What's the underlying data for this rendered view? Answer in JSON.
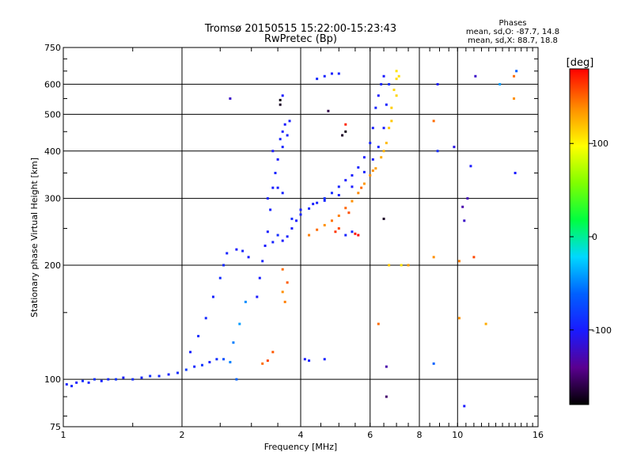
{
  "chart_data": {
    "type": "scatter",
    "title": "Tromsø 20150515 15:22:00-15:23:43",
    "subtitle": "RwPretec (Bp)",
    "xlabel": "Frequency [MHz]",
    "ylabel": "Stationary phase Virtual Height [km]",
    "x_scale": "log",
    "y_scale": "log",
    "xlim": [
      1,
      16
    ],
    "ylim": [
      75,
      750
    ],
    "x_ticks": [
      1,
      2,
      4,
      6,
      8,
      10,
      16
    ],
    "y_ticks": [
      75,
      100,
      200,
      300,
      400,
      500,
      600,
      750
    ],
    "grid": true,
    "phase_header": "Phases",
    "phase_o": "mean, sd,O: -87.7, 14.8",
    "phase_x": "mean, sd,X:  88.7, 18.8",
    "colorbar": {
      "label": "[deg]",
      "range": [
        -180,
        180
      ],
      "ticks": [
        100,
        0,
        -100
      ],
      "tick_labels": [
        "100",
        "0",
        "-100"
      ]
    },
    "series": [
      {
        "points": [
          [
            1.02,
            97,
            -95
          ],
          [
            1.05,
            96,
            -92
          ],
          [
            1.08,
            98,
            -100
          ],
          [
            1.12,
            99,
            -90
          ],
          [
            1.16,
            98,
            -95
          ],
          [
            1.2,
            100,
            -88
          ],
          [
            1.25,
            99,
            -96
          ],
          [
            1.3,
            100,
            -92
          ],
          [
            1.36,
            100,
            -85
          ],
          [
            1.42,
            101,
            -98
          ],
          [
            1.5,
            100,
            -90
          ],
          [
            1.58,
            101,
            -94
          ],
          [
            1.66,
            102,
            -88
          ],
          [
            1.75,
            102,
            -92
          ],
          [
            1.85,
            103,
            -95
          ],
          [
            1.95,
            104,
            -90
          ],
          [
            2.05,
            106,
            -80
          ],
          [
            2.15,
            108,
            -92
          ],
          [
            2.25,
            109,
            -85
          ],
          [
            2.35,
            111,
            -95
          ],
          [
            2.45,
            113,
            -88
          ],
          [
            2.55,
            113,
            -70
          ],
          [
            2.65,
            111,
            -50
          ],
          [
            2.75,
            100,
            -60
          ],
          [
            2.1,
            118,
            -95
          ],
          [
            2.2,
            130,
            -90
          ],
          [
            2.3,
            145,
            -92
          ],
          [
            2.4,
            165,
            -95
          ],
          [
            2.5,
            185,
            -90
          ],
          [
            2.55,
            200,
            -92
          ],
          [
            2.6,
            215,
            -95
          ],
          [
            2.75,
            220,
            -100
          ],
          [
            2.85,
            218,
            -95
          ],
          [
            2.95,
            210,
            -98
          ],
          [
            2.7,
            125,
            -50
          ],
          [
            2.8,
            140,
            -40
          ],
          [
            2.9,
            160,
            -45
          ],
          [
            3.1,
            165,
            -100
          ],
          [
            3.15,
            185,
            -98
          ],
          [
            3.2,
            205,
            -95
          ],
          [
            3.25,
            225,
            -100
          ],
          [
            3.3,
            245,
            -98
          ],
          [
            3.35,
            280,
            -95
          ],
          [
            3.4,
            320,
            -98
          ],
          [
            3.45,
            350,
            -95
          ],
          [
            3.5,
            380,
            -100
          ],
          [
            3.55,
            430,
            -95
          ],
          [
            3.6,
            450,
            -98
          ],
          [
            3.65,
            470,
            -100
          ],
          [
            3.7,
            440,
            -95
          ],
          [
            3.75,
            480,
            -98
          ],
          [
            3.4,
            230,
            -95
          ],
          [
            3.5,
            240,
            -90
          ],
          [
            3.6,
            232,
            -100
          ],
          [
            3.7,
            238,
            -95
          ],
          [
            3.8,
            250,
            -98
          ],
          [
            3.9,
            262,
            -100
          ],
          [
            4.0,
            272,
            -95
          ],
          [
            4.2,
            282,
            -90
          ],
          [
            4.4,
            292,
            -95
          ],
          [
            4.6,
            300,
            -88
          ],
          [
            4.8,
            310,
            -90
          ],
          [
            5.0,
            322,
            -95
          ],
          [
            5.2,
            335,
            -100
          ],
          [
            5.4,
            345,
            -98
          ],
          [
            5.6,
            362,
            -95
          ],
          [
            5.8,
            385,
            -100
          ],
          [
            6.0,
            420,
            -95
          ],
          [
            6.1,
            460,
            -98
          ],
          [
            6.2,
            520,
            -95
          ],
          [
            6.3,
            560,
            -100
          ],
          [
            6.4,
            600,
            -95
          ],
          [
            6.5,
            630,
            -100
          ],
          [
            3.8,
            265,
            -90
          ],
          [
            4.0,
            280,
            -95
          ],
          [
            4.3,
            290,
            -98
          ],
          [
            4.6,
            296,
            -92
          ],
          [
            5.0,
            306,
            -95
          ],
          [
            5.4,
            322,
            -100
          ],
          [
            5.8,
            352,
            -95
          ],
          [
            6.1,
            380,
            -98
          ],
          [
            6.3,
            410,
            -95
          ],
          [
            6.5,
            460,
            -100
          ],
          [
            6.6,
            530,
            -95
          ],
          [
            6.7,
            600,
            -90
          ],
          [
            3.3,
            300,
            -95
          ],
          [
            3.5,
            320,
            -98
          ],
          [
            3.6,
            310,
            -95
          ],
          [
            4.4,
            620,
            -92
          ],
          [
            4.6,
            630,
            -95
          ],
          [
            4.8,
            640,
            -98
          ],
          [
            5.0,
            640,
            -95
          ],
          [
            3.4,
            400,
            -100
          ],
          [
            3.6,
            410,
            -95
          ],
          [
            5.4,
            245,
            -92
          ],
          [
            5.2,
            240,
            -95
          ],
          [
            4.2,
            112,
            -95
          ],
          [
            4.1,
            113,
            -98
          ],
          [
            4.6,
            113,
            -95
          ],
          [
            3.6,
            195,
            150
          ],
          [
            3.7,
            180,
            155
          ],
          [
            3.6,
            170,
            140
          ],
          [
            3.65,
            160,
            145
          ],
          [
            4.2,
            240,
            145
          ],
          [
            4.4,
            248,
            150
          ],
          [
            4.6,
            255,
            140
          ],
          [
            4.8,
            262,
            148
          ],
          [
            5.0,
            270,
            145
          ],
          [
            5.2,
            283,
            152
          ],
          [
            5.4,
            295,
            140
          ],
          [
            5.6,
            310,
            142
          ],
          [
            5.8,
            328,
            138
          ],
          [
            6.0,
            345,
            140
          ],
          [
            6.2,
            360,
            135
          ],
          [
            6.4,
            385,
            130
          ],
          [
            6.6,
            420,
            125
          ],
          [
            6.7,
            460,
            120
          ],
          [
            6.8,
            520,
            118
          ],
          [
            6.9,
            580,
            115
          ],
          [
            7.0,
            620,
            112
          ],
          [
            5.0,
            250,
            160
          ],
          [
            4.9,
            245,
            165
          ],
          [
            5.3,
            275,
            158
          ],
          [
            5.7,
            320,
            150
          ],
          [
            6.1,
            355,
            140
          ],
          [
            6.5,
            400,
            128
          ],
          [
            6.8,
            480,
            120
          ],
          [
            7.0,
            560,
            115
          ],
          [
            7.1,
            630,
            112
          ],
          [
            7.0,
            650,
            110
          ],
          [
            3.3,
            112,
            160
          ],
          [
            3.4,
            118,
            155
          ],
          [
            3.2,
            110,
            150
          ],
          [
            5.5,
            242,
            175
          ],
          [
            5.6,
            240,
            178
          ],
          [
            6.5,
            265,
            -170
          ],
          [
            6.3,
            140,
            150
          ],
          [
            6.6,
            90,
            -150
          ],
          [
            6.6,
            108,
            -130
          ],
          [
            8.7,
            480,
            150
          ],
          [
            8.9,
            400,
            -90
          ],
          [
            9.8,
            410,
            -110
          ],
          [
            10.3,
            285,
            -130
          ],
          [
            10.4,
            262,
            -120
          ],
          [
            10.6,
            300,
            -125
          ],
          [
            11.0,
            210,
            160
          ],
          [
            10.1,
            205,
            145
          ],
          [
            8.7,
            210,
            140
          ],
          [
            7.5,
            200,
            135
          ],
          [
            10.8,
            365,
            -100
          ],
          [
            10.1,
            145,
            140
          ],
          [
            11.8,
            140,
            130
          ],
          [
            14.0,
            350,
            -100
          ],
          [
            13.9,
            630,
            150
          ],
          [
            14.1,
            650,
            -60
          ],
          [
            12.8,
            600,
            -40
          ],
          [
            13.9,
            550,
            140
          ],
          [
            11.1,
            630,
            -120
          ],
          [
            8.9,
            600,
            -100
          ],
          [
            8.7,
            110,
            -60
          ],
          [
            10.4,
            85,
            -100
          ],
          [
            6.7,
            200,
            120
          ],
          [
            7.2,
            200,
            110
          ],
          [
            5.1,
            440,
            -170
          ],
          [
            5.2,
            450,
            -175
          ],
          [
            2.65,
            550,
            -120
          ],
          [
            3.55,
            530,
            -170
          ],
          [
            3.55,
            545,
            -175
          ],
          [
            3.6,
            560,
            -100
          ],
          [
            4.7,
            510,
            -160
          ],
          [
            5.2,
            470,
            170
          ]
        ]
      }
    ]
  }
}
